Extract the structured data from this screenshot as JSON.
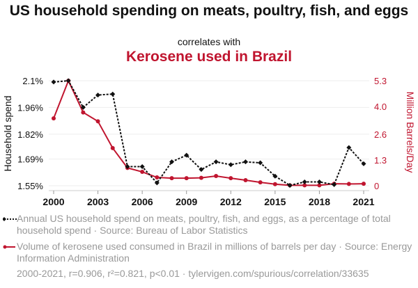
{
  "header": {
    "title": "US household spending on meats, poultry, fish, and eggs",
    "subtitle": "correlates with",
    "title2": "Kerosene used in Brazil"
  },
  "colors": {
    "series1": "#111111",
    "series2": "#c0152f",
    "grid": "#eeeeee",
    "muted": "#999999"
  },
  "legend": {
    "series1": "Annual US household spend on meats, poultry, fish, and eggs, as a percentage of total household spend · Source: Bureau of Labor Statistics",
    "series2": "Volume of kerosene used consumed in Brazil in millions of barrels per day · Source: Energy Information Administration"
  },
  "footer": "2000-2021, r=0.906, r²=0.821, p<0.01 · tylervigen.com/spurious/correlation/33635",
  "chart_data": {
    "type": "line",
    "title": "US household spending on meats, poultry, fish, and eggs correlates with Kerosene used in Brazil",
    "x": [
      2000,
      2001,
      2002,
      2003,
      2004,
      2005,
      2006,
      2007,
      2008,
      2009,
      2010,
      2011,
      2012,
      2013,
      2014,
      2015,
      2016,
      2017,
      2018,
      2019,
      2020,
      2021
    ],
    "xticks": [
      "2000",
      "2003",
      "2006",
      "2009",
      "2012",
      "2015",
      "2018",
      "2021"
    ],
    "xtick_values": [
      2000,
      2003,
      2006,
      2009,
      2012,
      2015,
      2018,
      2021
    ],
    "xlim": [
      2000,
      2021
    ],
    "ylabel_left": "Household spend",
    "ylabel_right": "Million Barrels/Day",
    "yticks_left": [
      "1.55%",
      "1.69%",
      "1.82%",
      "1.96%",
      "2.1%"
    ],
    "ytick_values_left": [
      1.55,
      1.69,
      1.82,
      1.96,
      2.1
    ],
    "ylim_left": [
      1.55,
      2.1
    ],
    "yticks_right": [
      "0",
      "1.3",
      "2.6",
      "4.0",
      "5.3"
    ],
    "ytick_values_right": [
      0,
      1.3,
      2.6,
      4.0,
      5.3
    ],
    "ylim_right": [
      0,
      5.3
    ],
    "grid": true,
    "legend_position": "bottom",
    "series": [
      {
        "name": "Annual US household spend on meats, poultry, fish, and eggs (% of total)",
        "axis": "left",
        "style": "dotted-diamond",
        "values": [
          2.093,
          2.1,
          1.96,
          2.025,
          2.03,
          1.65,
          1.65,
          1.565,
          1.675,
          1.71,
          1.635,
          1.675,
          1.66,
          1.675,
          1.67,
          1.6,
          1.552,
          1.57,
          1.57,
          1.556,
          1.75,
          1.665
        ]
      },
      {
        "name": "Volume of kerosene used consumed in Brazil (million barrels/day)",
        "axis": "right",
        "style": "solid-circle",
        "values": [
          3.4,
          5.3,
          3.7,
          3.25,
          1.9,
          0.9,
          0.7,
          0.42,
          0.38,
          0.38,
          0.4,
          0.49,
          0.38,
          0.28,
          0.17,
          0.08,
          0.02,
          0.02,
          0.02,
          0.1,
          0.09,
          0.1
        ]
      }
    ]
  }
}
